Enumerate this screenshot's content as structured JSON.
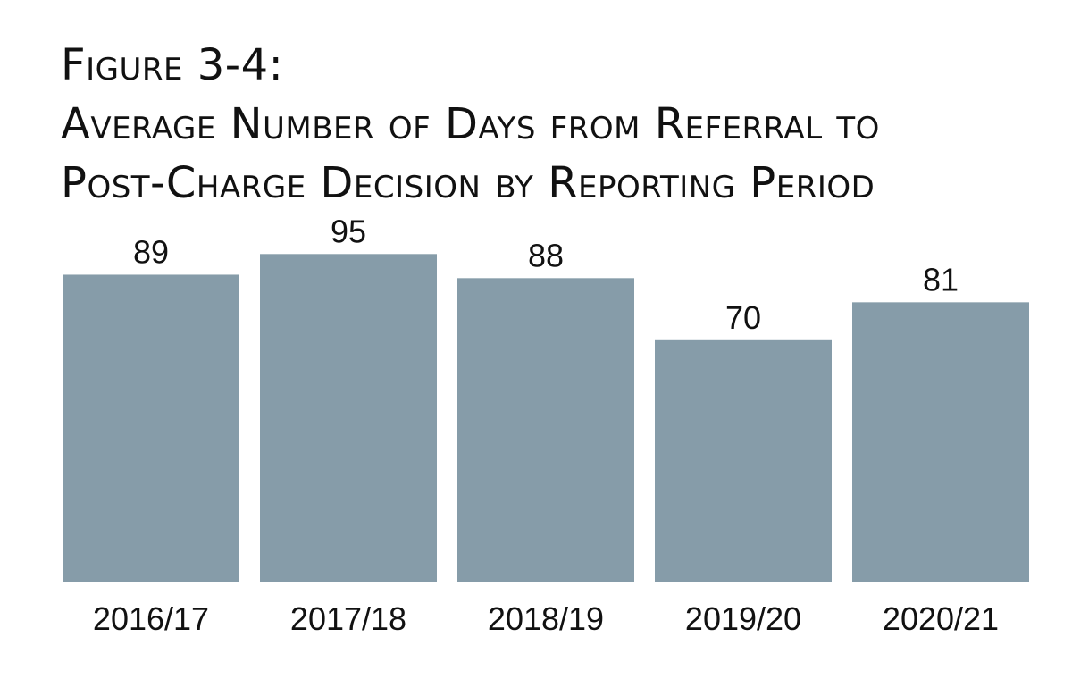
{
  "figure_label": "Figure 3-4:",
  "title_line_1": "Average Number of Days from Referral to",
  "title_line_2": "Post-Charge Decision by Reporting Period",
  "colors": {
    "bar": "#869ca9",
    "text": "#111111",
    "background": "#ffffff"
  },
  "chart_data": {
    "type": "bar",
    "title": "Figure 3-4: Average Number of Days from Referral to Post-Charge Decision by Reporting Period",
    "categories": [
      "2016/17",
      "2017/18",
      "2018/19",
      "2019/20",
      "2020/21"
    ],
    "values": [
      89,
      95,
      88,
      70,
      81
    ],
    "data_labels": [
      "89",
      "95",
      "88",
      "70",
      "81"
    ],
    "xlabel": "",
    "ylabel": "",
    "ylim": [
      0,
      95
    ],
    "grid": false,
    "legend": "none"
  }
}
